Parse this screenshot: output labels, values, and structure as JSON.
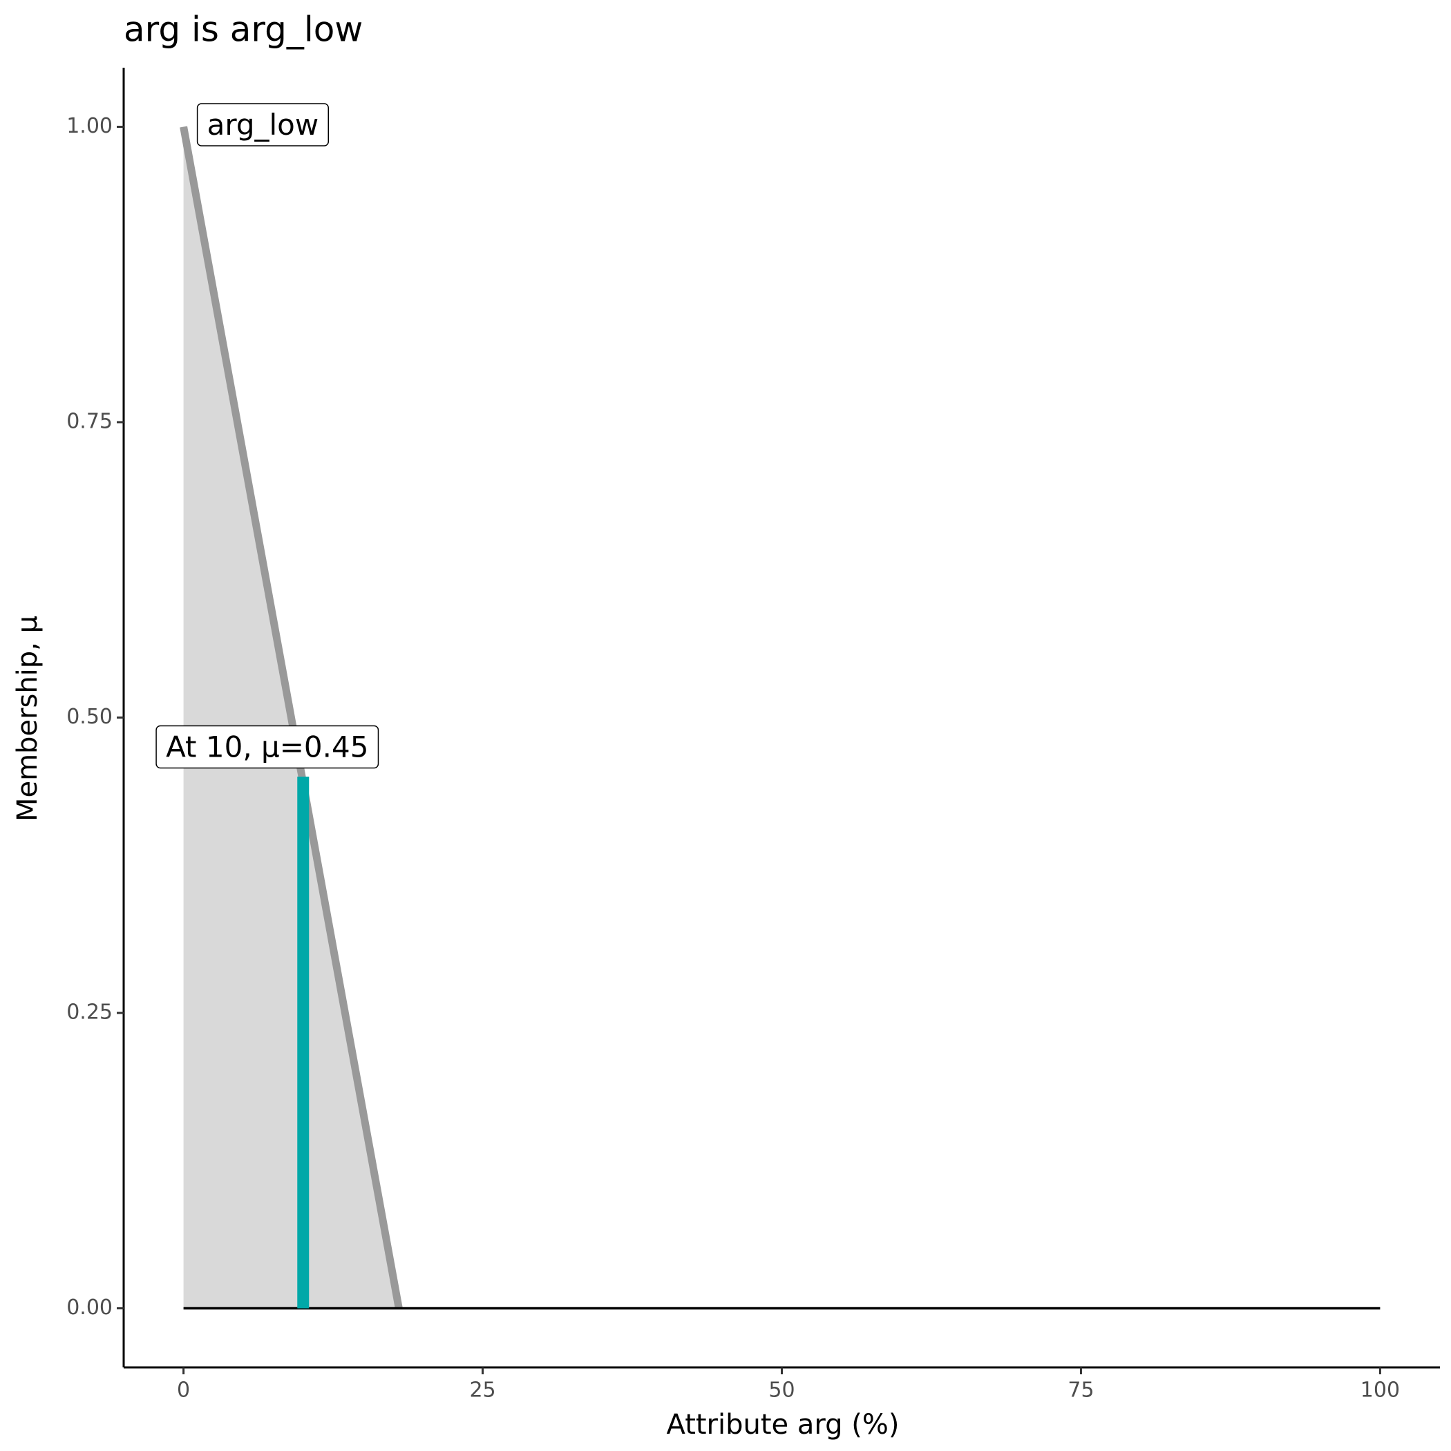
{
  "chart_data": {
    "type": "line",
    "title": "arg is arg_low",
    "x_label": "Attribute arg (%)",
    "y_label": "Membership, μ",
    "xlim": [
      -5,
      105
    ],
    "ylim": [
      -0.05,
      1.05
    ],
    "xticks": [
      0,
      25,
      50,
      75,
      100
    ],
    "yticks": [
      {
        "value": 0,
        "label": "0.00"
      },
      {
        "value": 0.25,
        "label": "0.25"
      },
      {
        "value": 0.5,
        "label": "0.50"
      },
      {
        "value": 0.75,
        "label": "0.75"
      },
      {
        "value": 1,
        "label": "1.00"
      }
    ],
    "grid": false,
    "series": [
      {
        "color": "#999999",
        "fill": "#d9d9d9",
        "x": [
          0,
          18
        ],
        "values": [
          1,
          0
        ]
      },
      {
        "color": "#000000",
        "x": [
          0,
          100
        ],
        "values": [
          0,
          0
        ]
      }
    ],
    "marker": {
      "x": 10,
      "value": 0.45,
      "color": "#00a8a8"
    },
    "annotations": [
      "arg_low",
      "At 10, μ=0.45"
    ]
  }
}
